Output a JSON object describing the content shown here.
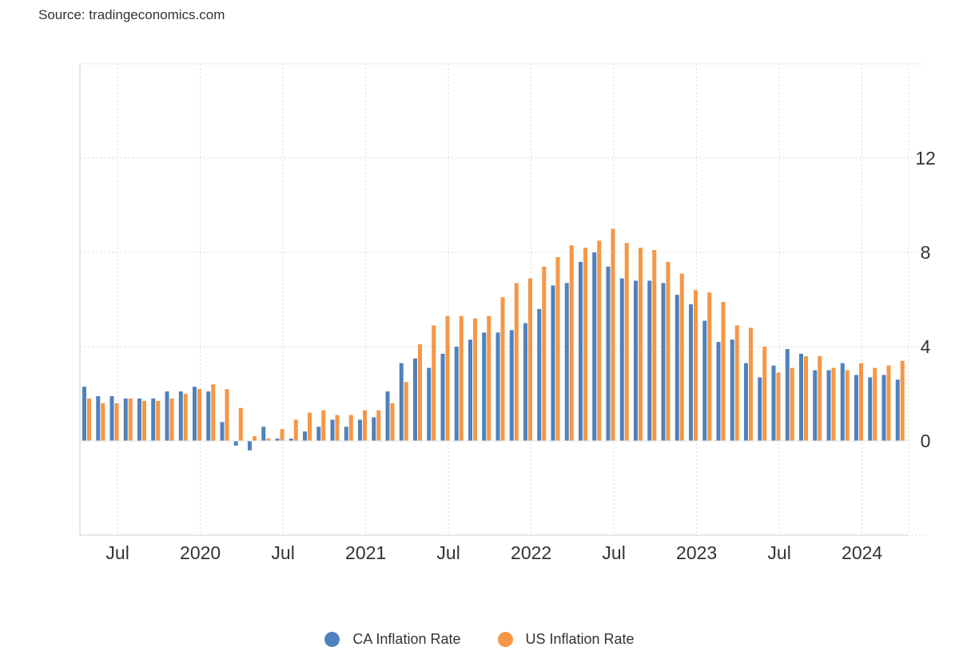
{
  "source": "Source: tradingeconomics.com",
  "chart_data": {
    "type": "bar",
    "y_axis": {
      "ticks": [
        0,
        4,
        8,
        12
      ],
      "range": [
        -4,
        16
      ],
      "position": "right",
      "grid": true
    },
    "x_ticks": [
      {
        "label": "Jul",
        "date": "2019-07"
      },
      {
        "label": "2020",
        "date": "2020-01"
      },
      {
        "label": "Jul",
        "date": "2020-07"
      },
      {
        "label": "2021",
        "date": "2021-01"
      },
      {
        "label": "Jul",
        "date": "2021-07"
      },
      {
        "label": "2022",
        "date": "2022-01"
      },
      {
        "label": "Jul",
        "date": "2022-07"
      },
      {
        "label": "2023",
        "date": "2023-01"
      },
      {
        "label": "Jul",
        "date": "2023-07"
      },
      {
        "label": "2024",
        "date": "2024-01"
      }
    ],
    "x": [
      "2019-04",
      "2019-05",
      "2019-06",
      "2019-07",
      "2019-08",
      "2019-09",
      "2019-10",
      "2019-11",
      "2019-12",
      "2020-01",
      "2020-02",
      "2020-03",
      "2020-04",
      "2020-05",
      "2020-06",
      "2020-07",
      "2020-08",
      "2020-09",
      "2020-10",
      "2020-11",
      "2020-12",
      "2021-01",
      "2021-02",
      "2021-03",
      "2021-04",
      "2021-05",
      "2021-06",
      "2021-07",
      "2021-08",
      "2021-09",
      "2021-10",
      "2021-11",
      "2021-12",
      "2022-01",
      "2022-02",
      "2022-03",
      "2022-04",
      "2022-05",
      "2022-06",
      "2022-07",
      "2022-08",
      "2022-09",
      "2022-10",
      "2022-11",
      "2022-12",
      "2023-01",
      "2023-02",
      "2023-03",
      "2023-04",
      "2023-05",
      "2023-06",
      "2023-07",
      "2023-08",
      "2023-09",
      "2023-10",
      "2023-11",
      "2023-12",
      "2024-01",
      "2024-02",
      "2024-03"
    ],
    "series": [
      {
        "name": "CA Inflation Rate",
        "color": "#4f81bd",
        "values": [
          2.3,
          1.9,
          1.9,
          1.8,
          1.8,
          1.8,
          2.1,
          2.1,
          2.3,
          2.1,
          0.8,
          -0.2,
          -0.4,
          0.6,
          0.1,
          0.1,
          0.4,
          0.6,
          0.9,
          0.6,
          0.9,
          1.0,
          2.1,
          3.3,
          3.5,
          3.1,
          3.7,
          4.0,
          4.3,
          4.6,
          4.6,
          4.7,
          5.0,
          5.6,
          6.6,
          6.7,
          7.6,
          8.0,
          7.4,
          6.9,
          6.8,
          6.8,
          6.7,
          6.2,
          5.8,
          5.1,
          4.2,
          4.3,
          3.3,
          2.7,
          3.2,
          3.9,
          3.7,
          3.0,
          3.0,
          3.3,
          2.8,
          2.7,
          2.8,
          2.6
        ]
      },
      {
        "name": "US Inflation Rate",
        "color": "#f79646",
        "values": [
          1.8,
          1.6,
          1.6,
          1.8,
          1.7,
          1.7,
          1.8,
          2.0,
          2.2,
          2.4,
          2.2,
          1.4,
          0.2,
          0.1,
          0.5,
          0.9,
          1.2,
          1.3,
          1.1,
          1.1,
          1.3,
          1.3,
          1.6,
          2.5,
          4.1,
          4.9,
          5.3,
          5.3,
          5.2,
          5.3,
          6.1,
          6.7,
          6.9,
          7.4,
          7.8,
          8.3,
          8.2,
          8.5,
          9.0,
          8.4,
          8.2,
          8.1,
          7.6,
          7.1,
          6.4,
          6.3,
          5.9,
          4.9,
          4.8,
          4.0,
          2.9,
          3.1,
          3.6,
          3.6,
          3.1,
          3.0,
          3.3,
          3.1,
          3.2,
          3.4
        ]
      }
    ]
  }
}
